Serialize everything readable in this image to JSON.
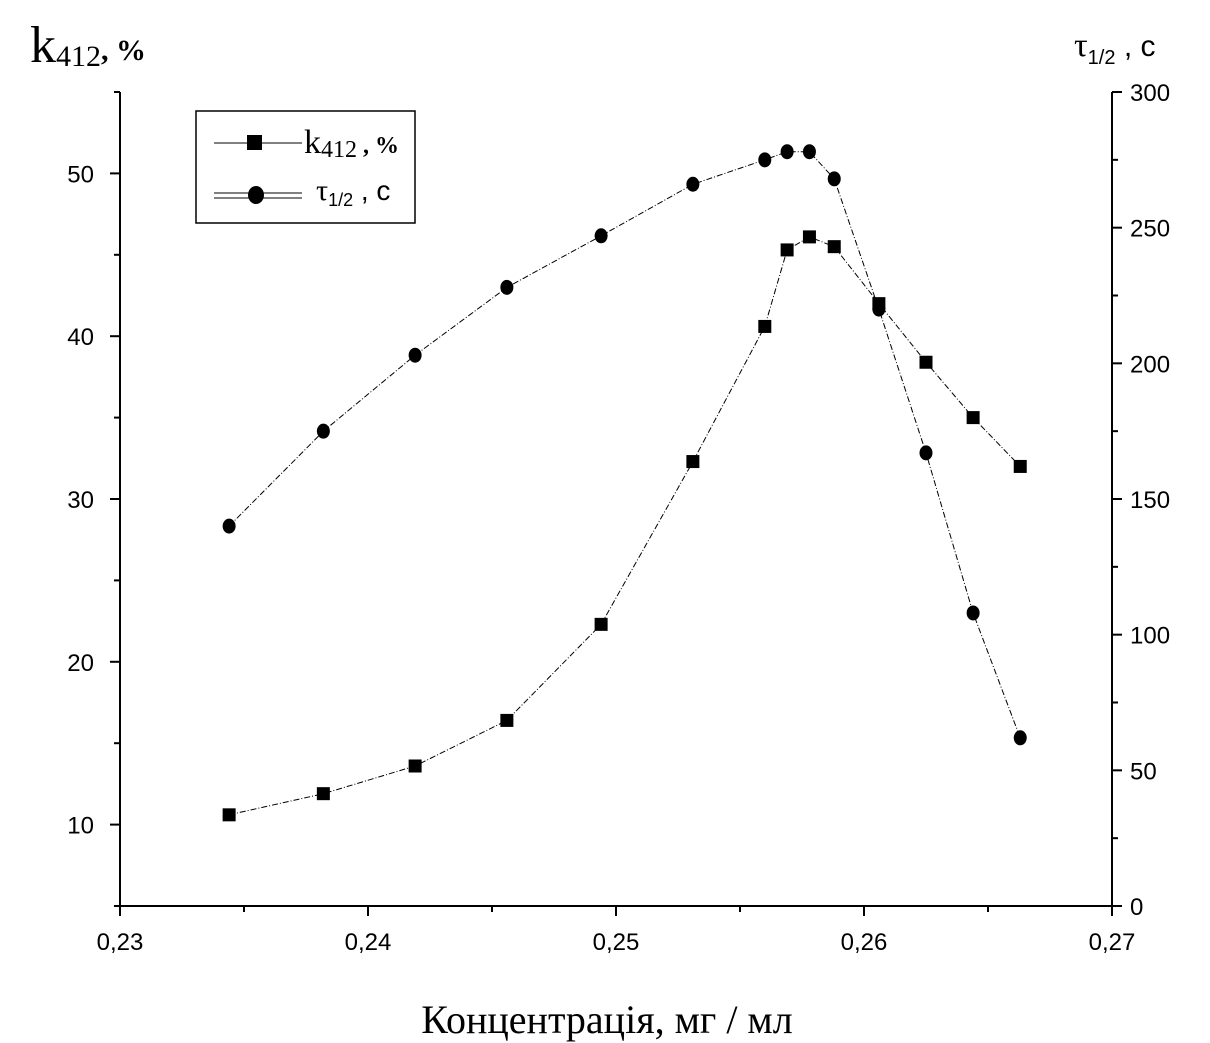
{
  "chart_data": {
    "type": "line",
    "title": "",
    "xlabel": "Концентрація, мг / мл",
    "ylabel_left": {
      "main": "k",
      "sub": "412",
      "suffix": ", %"
    },
    "ylabel_right": {
      "main": "τ",
      "sub": "1/2",
      "suffix": " , с"
    },
    "xlim": [
      0.23,
      0.27
    ],
    "ylim_left": [
      5,
      55
    ],
    "ylim_right": [
      0,
      300
    ],
    "x_ticks": [
      0.23,
      0.24,
      0.25,
      0.26,
      0.27
    ],
    "x_tick_labels": [
      "0,23",
      "0,24",
      "0,25",
      "0,26",
      "0,27"
    ],
    "y_left_ticks": [
      10,
      20,
      30,
      40,
      50
    ],
    "y_left_tick_labels": [
      "10",
      "20",
      "30",
      "40",
      "50"
    ],
    "y_right_ticks": [
      0,
      50,
      100,
      150,
      200,
      250,
      300
    ],
    "y_right_tick_labels": [
      "0",
      "50",
      "100",
      "150",
      "200",
      "250",
      "300"
    ],
    "legend_position": "top-left",
    "grid": false,
    "series": [
      {
        "name": {
          "main": "k",
          "sub": "412",
          "suffix": " , %"
        },
        "axis": "left",
        "marker": "square",
        "x": [
          0.2344,
          0.2382,
          0.2419,
          0.2456,
          0.2494,
          0.2531,
          0.256,
          0.2569,
          0.2578,
          0.2588,
          0.2606,
          0.2625,
          0.2644,
          0.2663
        ],
        "y": [
          10.6,
          11.9,
          13.6,
          16.4,
          22.3,
          32.3,
          40.6,
          45.3,
          46.1,
          45.5,
          42.0,
          38.4,
          35.0,
          32.0
        ]
      },
      {
        "name": {
          "main": "τ",
          "sub": "1/2",
          "suffix": " , с"
        },
        "axis": "right",
        "marker": "circle",
        "x": [
          0.2344,
          0.2382,
          0.2419,
          0.2456,
          0.2494,
          0.2531,
          0.256,
          0.2569,
          0.2578,
          0.2588,
          0.2606,
          0.2625,
          0.2644,
          0.2663
        ],
        "y": [
          140,
          175,
          203,
          228,
          247,
          266,
          275,
          278,
          278,
          268,
          220,
          167,
          108,
          62
        ]
      }
    ]
  }
}
